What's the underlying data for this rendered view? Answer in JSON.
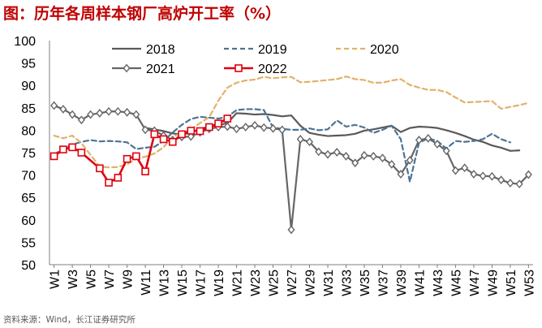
{
  "header": {
    "title": "图：历年各周样本钢厂高炉开工率（%）"
  },
  "footer": {
    "source": "资料来源：Wind，长江证券研究所"
  },
  "chart_data": {
    "type": "line",
    "title": "历年各周样本钢厂高炉开工率（%）",
    "xlabel": "",
    "ylabel": "",
    "ylim": [
      50,
      100
    ],
    "yticks": [
      50,
      55,
      60,
      65,
      70,
      75,
      80,
      85,
      90,
      95,
      100
    ],
    "legend": "top",
    "categories": [
      "W1",
      "W2",
      "W3",
      "W4",
      "W5",
      "W6",
      "W7",
      "W8",
      "W9",
      "W10",
      "W11",
      "W12",
      "W13",
      "W14",
      "W15",
      "W16",
      "W17",
      "W18",
      "W19",
      "W20",
      "W21",
      "W22",
      "W23",
      "W24",
      "W25",
      "W26",
      "W27",
      "W28",
      "W29",
      "W30",
      "W31",
      "W32",
      "W33",
      "W34",
      "W35",
      "W36",
      "W37",
      "W38",
      "W39",
      "W40",
      "W41",
      "W42",
      "W43",
      "W44",
      "W45",
      "W46",
      "W47",
      "W48",
      "W49",
      "W50",
      "W51",
      "W52",
      "W53"
    ],
    "tick_labels": [
      "W1",
      "W3",
      "W5",
      "W7",
      "W9",
      "W11",
      "W13",
      "W15",
      "W17",
      "W19",
      "W21",
      "W23",
      "W25",
      "W27",
      "W29",
      "W31",
      "W33",
      "W35",
      "W37",
      "W39",
      "W41",
      "W43",
      "W45",
      "W47",
      "W49",
      "W51",
      "W53"
    ],
    "series": [
      {
        "name": "2018",
        "color": "#595959",
        "style": "solid",
        "values": [
          null,
          null,
          null,
          null,
          null,
          null,
          null,
          null,
          null,
          null,
          80.5,
          80.2,
          79.8,
          79.3,
          79.0,
          79.5,
          80.3,
          80.8,
          81.1,
          81.6,
          83.8,
          83.7,
          83.5,
          83.6,
          83.4,
          83.1,
          83.3,
          81.0,
          79.4,
          79.0,
          78.7,
          78.8,
          78.9,
          79.2,
          79.9,
          80.2,
          80.6,
          81.0,
          79.6,
          80.5,
          80.8,
          80.7,
          80.5,
          80.0,
          79.4,
          78.7,
          77.9,
          77.4,
          76.6,
          76.1,
          75.4,
          75.5,
          null
        ]
      },
      {
        "name": "2019",
        "color": "#4d7394",
        "style": "dash",
        "values": [
          74.6,
          75.8,
          76.8,
          77.4,
          77.8,
          77.5,
          77.6,
          77.5,
          77.3,
          75.8,
          76.1,
          76.3,
          77.6,
          79.5,
          81.2,
          82.5,
          83.0,
          82.8,
          82.6,
          83.0,
          84.5,
          84.7,
          84.7,
          84.5,
          80.6,
          80.3,
          80.1,
          80.1,
          80.4,
          80.0,
          80.2,
          82.2,
          80.8,
          81.2,
          80.6,
          79.4,
          80.1,
          81.0,
          78.0,
          68.5,
          77.2,
          78.2,
          77.6,
          75.9,
          77.6,
          77.4,
          77.6,
          78.0,
          79.2,
          78.0,
          77.3,
          null,
          null
        ]
      },
      {
        "name": "2020",
        "color": "#e0b26b",
        "style": "dash",
        "values": [
          78.8,
          78.2,
          78.8,
          77.1,
          74.5,
          71.9,
          71.7,
          71.8,
          72.4,
          73.6,
          74.1,
          74.8,
          76.2,
          78.6,
          79.3,
          80.2,
          81.6,
          82.9,
          86.6,
          89.5,
          90.6,
          91.1,
          91.3,
          91.9,
          91.6,
          91.8,
          91.9,
          90.7,
          90.8,
          91.0,
          91.2,
          91.4,
          92.0,
          91.4,
          91.2,
          90.6,
          90.6,
          91.1,
          91.4,
          90.1,
          89.5,
          89.0,
          89.0,
          88.5,
          87.3,
          86.2,
          86.3,
          86.4,
          86.5,
          84.8,
          85.2,
          85.6,
          86.1
        ]
      },
      {
        "name": "2021",
        "color": "#666666",
        "style": "solid",
        "marker": "diamond",
        "values": [
          85.5,
          84.7,
          83.5,
          82.3,
          83.5,
          83.8,
          84.2,
          84.2,
          84.0,
          83.5,
          80.1,
          79.9,
          78.8,
          77.8,
          78.5,
          78.6,
          79.5,
          80.3,
          80.7,
          80.8,
          80.3,
          80.7,
          81.1,
          80.6,
          80.4,
          80.1,
          57.8,
          78.0,
          77.4,
          75.2,
          74.6,
          75.1,
          74.2,
          72.7,
          74.4,
          74.2,
          73.8,
          72.4,
          70.2,
          73.3,
          77.8,
          78.2,
          76.9,
          75.4,
          71.0,
          71.6,
          70.2,
          69.8,
          69.7,
          68.9,
          68.2,
          68.0,
          70.1
        ]
      },
      {
        "name": "2022",
        "color": "#e0000e",
        "style": "solid",
        "marker": "square",
        "values": [
          74.2,
          75.7,
          76.2,
          75.0,
          null,
          71.5,
          68.3,
          69.4,
          73.6,
          74.2,
          70.8,
          79.1,
          78.0,
          77.4,
          79.1,
          79.9,
          79.8,
          80.7,
          81.5,
          82.6,
          null,
          null,
          null,
          null,
          null,
          null,
          null,
          null,
          null,
          null,
          null,
          null,
          null,
          null,
          null,
          null,
          null,
          null,
          null,
          null,
          null,
          null,
          null,
          null,
          null,
          null,
          null,
          null,
          null,
          null,
          null,
          null,
          null
        ]
      }
    ]
  }
}
